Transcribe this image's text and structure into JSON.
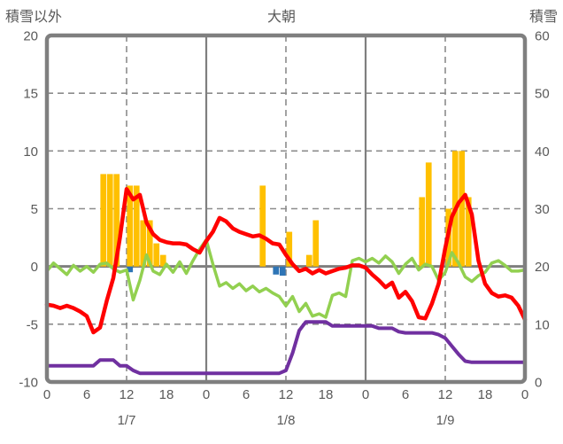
{
  "chart_data": {
    "type": "bar",
    "title": "大朝",
    "left_axis": {
      "label": "積雪以外",
      "min": -10,
      "max": 20,
      "ticks": [
        20,
        15,
        10,
        5,
        0,
        -5,
        -10
      ]
    },
    "right_axis": {
      "label": "積雪",
      "min": 0,
      "max": 60,
      "ticks": [
        60,
        50,
        40,
        30,
        20,
        10,
        0
      ]
    },
    "x_axis": {
      "hours_total": 72,
      "tick_step": 6,
      "hour_labels": [
        "0",
        "6",
        "12",
        "18",
        "0",
        "6",
        "12",
        "18",
        "0",
        "6",
        "12",
        "18",
        "0"
      ],
      "date_labels": [
        "1/7",
        "1/8",
        "1/9"
      ],
      "noon_hours": [
        12,
        36,
        60
      ],
      "day_boundary_hours": [
        24,
        48
      ]
    },
    "grid": {
      "dashed_color": "#8C8C8C",
      "zero_line_color": "#7F7F7F",
      "border_color": "#7F7F7F"
    },
    "series": [
      {
        "name": "orange-bars",
        "type": "bar",
        "axis": "left",
        "color": "#FFC000",
        "points": [
          [
            8,
            8
          ],
          [
            9,
            8
          ],
          [
            10,
            8
          ],
          [
            12,
            7
          ],
          [
            13,
            7
          ],
          [
            14,
            4
          ],
          [
            15,
            4
          ],
          [
            16,
            2
          ],
          [
            17,
            1
          ],
          [
            32,
            7
          ],
          [
            36,
            3
          ],
          [
            39,
            1
          ],
          [
            40,
            4
          ],
          [
            56,
            6
          ],
          [
            57,
            9
          ],
          [
            60,
            5
          ],
          [
            61,
            10
          ],
          [
            62,
            10
          ],
          [
            63,
            6
          ]
        ]
      },
      {
        "name": "blue-bars",
        "type": "bar",
        "axis": "left",
        "color": "#2E75B6",
        "points": [
          [
            12,
            -0.5
          ],
          [
            34,
            -0.7
          ],
          [
            35,
            -0.8
          ]
        ]
      },
      {
        "name": "purple-line",
        "type": "line",
        "axis": "right",
        "color": "#7030A0",
        "width": 4,
        "values": [
          2.8,
          2.8,
          2.8,
          2.8,
          2.8,
          2.8,
          2.8,
          2.8,
          3.8,
          3.8,
          3.8,
          2.8,
          2.8,
          2.0,
          1.5,
          1.5,
          1.5,
          1.5,
          1.5,
          1.5,
          1.5,
          1.5,
          1.5,
          1.5,
          1.5,
          1.5,
          1.5,
          1.5,
          1.5,
          1.5,
          1.5,
          1.5,
          1.5,
          1.5,
          1.5,
          1.5,
          2.0,
          5.0,
          8.9,
          10.4,
          10.4,
          10.4,
          10.4,
          9.7,
          9.7,
          9.7,
          9.7,
          9.7,
          9.7,
          9.7,
          9.3,
          9.3,
          9.3,
          8.7,
          8.5,
          8.5,
          8.5,
          8.5,
          8.5,
          8.2,
          7.6,
          6.2,
          4.8,
          3.6,
          3.4,
          3.4,
          3.4,
          3.4,
          3.4,
          3.4,
          3.4,
          3.4,
          3.4
        ]
      },
      {
        "name": "green-line",
        "type": "line",
        "axis": "left",
        "color": "#92D050",
        "width": 3.5,
        "values": [
          -0.4,
          0.3,
          -0.2,
          -0.7,
          0.1,
          -0.4,
          0.0,
          -0.5,
          0.2,
          0.3,
          -0.2,
          -0.5,
          -0.3,
          -2.9,
          -1.2,
          1.0,
          -0.4,
          -0.7,
          0.2,
          -0.5,
          0.4,
          -0.6,
          0.5,
          1.5,
          2.3,
          0.2,
          -1.7,
          -1.4,
          -1.9,
          -1.5,
          -2.1,
          -1.7,
          -2.2,
          -1.9,
          -2.3,
          -2.6,
          -3.4,
          -2.6,
          -3.9,
          -3.2,
          -4.3,
          -4.1,
          -4.4,
          -2.5,
          -2.3,
          -2.6,
          0.5,
          0.7,
          0.4,
          0.7,
          0.3,
          0.9,
          0.4,
          -0.6,
          0.2,
          0.7,
          -0.3,
          0.2,
          0.0,
          -1.2,
          -0.5,
          1.2,
          0.3,
          -0.9,
          -1.3,
          -0.8,
          -0.5,
          0.3,
          0.5,
          0.1,
          -0.4,
          -0.4,
          -0.3
        ]
      },
      {
        "name": "red-line",
        "type": "line",
        "axis": "left",
        "color": "#FF0000",
        "width": 4.5,
        "values": [
          -3.3,
          -3.4,
          -3.6,
          -3.4,
          -3.6,
          -3.9,
          -4.3,
          -5.7,
          -5.3,
          -3.0,
          -1.0,
          2.5,
          6.7,
          5.8,
          6.2,
          3.8,
          2.8,
          2.3,
          2.1,
          2.0,
          2.0,
          1.9,
          1.5,
          1.2,
          2.2,
          3.0,
          4.2,
          3.9,
          3.3,
          3.0,
          2.8,
          2.6,
          2.7,
          2.4,
          2.0,
          1.9,
          1.0,
          0.2,
          -0.4,
          -0.2,
          -0.6,
          -0.3,
          -0.6,
          -0.4,
          -0.2,
          -0.1,
          0.1,
          0.1,
          -0.1,
          -0.7,
          -1.2,
          -1.8,
          -1.4,
          -2.7,
          -2.2,
          -3.0,
          -4.4,
          -4.5,
          -3.2,
          -1.5,
          1.6,
          4.3,
          5.5,
          6.2,
          4.5,
          0.5,
          -1.5,
          -2.3,
          -2.6,
          -2.5,
          -2.7,
          -3.4,
          -4.6
        ]
      }
    ],
    "layout": {
      "plot_left": 53,
      "plot_top": 40,
      "plot_right": 593,
      "plot_bottom": 431,
      "hour_label_y": 450,
      "date_label_y": 479
    }
  }
}
